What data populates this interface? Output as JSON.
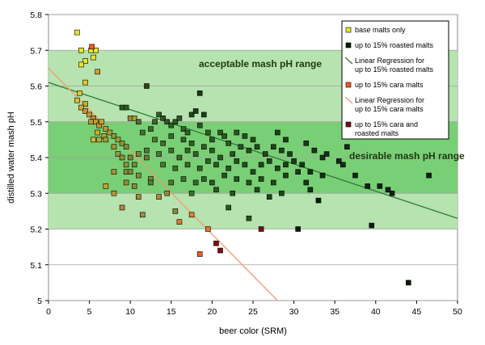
{
  "chart_data": {
    "type": "scatter",
    "title": "",
    "xlabel": "beer color (SRM)",
    "ylabel": "distilled water mash pH",
    "xlim": [
      0,
      50
    ],
    "ylim": [
      5.0,
      5.8
    ],
    "x_ticks": [
      "0",
      "5",
      "10",
      "15",
      "20",
      "25",
      "30",
      "35",
      "40",
      "45",
      "50"
    ],
    "y_ticks": [
      "5",
      "5.1",
      "5.2",
      "5.3",
      "5.4",
      "5.5",
      "5.6",
      "5.7",
      "5.8"
    ],
    "grid": "horizontal",
    "legend_position": "top-right",
    "bands": [
      {
        "label": "acceptable mash pH range",
        "ymin": 5.2,
        "ymax": 5.7,
        "color": "#b6e3b0"
      },
      {
        "label": "desirable mash pH range",
        "ymin": 5.3,
        "ymax": 5.5,
        "color": "#79cf75"
      }
    ],
    "legend": [
      {
        "label": "base malts only",
        "color": "#e6e62a",
        "kind": "marker"
      },
      {
        "label": "up to 15% roasted malts",
        "color": "#0a1a08",
        "kind": "marker"
      },
      {
        "label": "Linear Regression for up to 15% roasted malts",
        "color": "#2f7a36",
        "kind": "line"
      },
      {
        "label": "up to 15% cara malts",
        "color": "#f05a20",
        "kind": "marker"
      },
      {
        "label": "Linear Regression for up to 15% cara malts",
        "color": "#f59a6e",
        "kind": "line"
      },
      {
        "label": "up to 15% cara and roasted malts",
        "color": "#7a0f10",
        "kind": "marker"
      }
    ],
    "regression_lines": [
      {
        "name": "Linear Regression for up to 15% roasted malts",
        "color": "#2f7a36",
        "x": [
          0,
          50
        ],
        "y": [
          5.61,
          5.23
        ]
      },
      {
        "name": "Linear Regression for up to 15% cara malts",
        "color": "#f59a6e",
        "x": [
          0,
          28
        ],
        "y": [
          5.65,
          5.0
        ]
      }
    ],
    "points": [
      {
        "x": 3.5,
        "y": 5.75,
        "color": "#e6e62a"
      },
      {
        "x": 4.0,
        "y": 5.7,
        "color": "#e6e62a"
      },
      {
        "x": 5.2,
        "y": 5.7,
        "color": "#e6e62a"
      },
      {
        "x": 5.8,
        "y": 5.7,
        "color": "#e6e62a"
      },
      {
        "x": 5.5,
        "y": 5.68,
        "color": "#e6e62a"
      },
      {
        "x": 4.5,
        "y": 5.67,
        "color": "#e6e62a"
      },
      {
        "x": 4.0,
        "y": 5.66,
        "color": "#e6e62a"
      },
      {
        "x": 5.3,
        "y": 5.71,
        "color": "#f05a20"
      },
      {
        "x": 6.0,
        "y": 5.64,
        "color": "#cfa030"
      },
      {
        "x": 4.5,
        "y": 5.61,
        "color": "#e0c828"
      },
      {
        "x": 3.8,
        "y": 5.58,
        "color": "#e0c828"
      },
      {
        "x": 3.5,
        "y": 5.56,
        "color": "#d8c028"
      },
      {
        "x": 4.5,
        "y": 5.55,
        "color": "#c8b028"
      },
      {
        "x": 4.0,
        "y": 5.54,
        "color": "#d8a830"
      },
      {
        "x": 4.5,
        "y": 5.53,
        "color": "#d09030"
      },
      {
        "x": 5.0,
        "y": 5.52,
        "color": "#c89830"
      },
      {
        "x": 5.5,
        "y": 5.51,
        "color": "#d08830"
      },
      {
        "x": 5.2,
        "y": 5.5,
        "color": "#c09830"
      },
      {
        "x": 5.8,
        "y": 5.5,
        "color": "#b8a030"
      },
      {
        "x": 6.2,
        "y": 5.49,
        "color": "#d09030"
      },
      {
        "x": 6.5,
        "y": 5.5,
        "color": "#c8a030"
      },
      {
        "x": 7.0,
        "y": 5.48,
        "color": "#b0a038"
      },
      {
        "x": 7.5,
        "y": 5.47,
        "color": "#a8a038"
      },
      {
        "x": 6.0,
        "y": 5.47,
        "color": "#c8b028"
      },
      {
        "x": 6.8,
        "y": 5.46,
        "color": "#b8a830"
      },
      {
        "x": 5.5,
        "y": 5.45,
        "color": "#d0b830"
      },
      {
        "x": 6.2,
        "y": 5.45,
        "color": "#b8b030"
      },
      {
        "x": 7.0,
        "y": 5.45,
        "color": "#9aa038"
      },
      {
        "x": 8.0,
        "y": 5.46,
        "color": "#8a9838"
      },
      {
        "x": 8.5,
        "y": 5.45,
        "color": "#a0a038"
      },
      {
        "x": 9.0,
        "y": 5.44,
        "color": "#8a9838"
      },
      {
        "x": 8.0,
        "y": 5.43,
        "color": "#a09838"
      },
      {
        "x": 9.5,
        "y": 5.43,
        "color": "#7a9038"
      },
      {
        "x": 8.5,
        "y": 5.41,
        "color": "#9a9838"
      },
      {
        "x": 9.0,
        "y": 5.4,
        "color": "#8a9038"
      },
      {
        "x": 10.0,
        "y": 5.4,
        "color": "#788838"
      },
      {
        "x": 9.5,
        "y": 5.38,
        "color": "#909038"
      },
      {
        "x": 10.5,
        "y": 5.38,
        "color": "#708838"
      },
      {
        "x": 11.0,
        "y": 5.41,
        "color": "#808838"
      },
      {
        "x": 12.0,
        "y": 5.4,
        "color": "#687838"
      },
      {
        "x": 8.0,
        "y": 5.36,
        "color": "#a09838"
      },
      {
        "x": 9.5,
        "y": 5.36,
        "color": "#888838"
      },
      {
        "x": 10.0,
        "y": 5.36,
        "color": "#7a8838"
      },
      {
        "x": 11.0,
        "y": 5.35,
        "color": "#888838"
      },
      {
        "x": 12.5,
        "y": 5.34,
        "color": "#788838"
      },
      {
        "x": 7.0,
        "y": 5.32,
        "color": "#c8a030"
      },
      {
        "x": 8.0,
        "y": 5.3,
        "color": "#b09838"
      },
      {
        "x": 9.5,
        "y": 5.33,
        "color": "#a08838"
      },
      {
        "x": 10.5,
        "y": 5.32,
        "color": "#8a8838"
      },
      {
        "x": 11.0,
        "y": 5.29,
        "color": "#a08838"
      },
      {
        "x": 13.5,
        "y": 5.29,
        "color": "#b08838"
      },
      {
        "x": 14.5,
        "y": 5.3,
        "color": "#988838"
      },
      {
        "x": 9.0,
        "y": 5.26,
        "color": "#b08838"
      },
      {
        "x": 11.5,
        "y": 5.24,
        "color": "#a88838"
      },
      {
        "x": 15.5,
        "y": 5.25,
        "color": "#888838"
      },
      {
        "x": 16.0,
        "y": 5.22,
        "color": "#e07830"
      },
      {
        "x": 17.5,
        "y": 5.24,
        "color": "#e08030"
      },
      {
        "x": 19.5,
        "y": 5.2,
        "color": "#e07830"
      },
      {
        "x": 18.5,
        "y": 5.13,
        "color": "#f05a20"
      },
      {
        "x": 20.5,
        "y": 5.16,
        "color": "#7a0f10"
      },
      {
        "x": 21.0,
        "y": 5.14,
        "color": "#7a0f10"
      },
      {
        "x": 26.0,
        "y": 5.2,
        "color": "#7a0f10"
      },
      {
        "x": 9.0,
        "y": 5.54,
        "color": "#2a5a18"
      },
      {
        "x": 9.5,
        "y": 5.54,
        "color": "#2a5a18"
      },
      {
        "x": 10.0,
        "y": 5.51,
        "color": "#a08838"
      },
      {
        "x": 10.5,
        "y": 5.51,
        "color": "#a0a030"
      },
      {
        "x": 12.0,
        "y": 5.6,
        "color": "#3a4010"
      },
      {
        "x": 18.5,
        "y": 5.58,
        "color": "#183a10"
      },
      {
        "x": 11.0,
        "y": 5.5,
        "color": "#507030"
      },
      {
        "x": 11.5,
        "y": 5.47,
        "color": "#4a7030"
      },
      {
        "x": 12.5,
        "y": 5.48,
        "color": "#3e6a28"
      },
      {
        "x": 13.0,
        "y": 5.5,
        "color": "#386a28"
      },
      {
        "x": 13.5,
        "y": 5.52,
        "color": "#306028"
      },
      {
        "x": 14.0,
        "y": 5.51,
        "color": "#2a5820"
      },
      {
        "x": 14.5,
        "y": 5.5,
        "color": "#2a5820"
      },
      {
        "x": 15.0,
        "y": 5.49,
        "color": "#2e6020"
      },
      {
        "x": 15.5,
        "y": 5.5,
        "color": "#2a5a20"
      },
      {
        "x": 16.0,
        "y": 5.51,
        "color": "#2a5a20"
      },
      {
        "x": 16.5,
        "y": 5.48,
        "color": "#306020"
      },
      {
        "x": 17.0,
        "y": 5.47,
        "color": "#306020"
      },
      {
        "x": 17.5,
        "y": 5.52,
        "color": "#1e4818"
      },
      {
        "x": 18.0,
        "y": 5.53,
        "color": "#1a4018"
      },
      {
        "x": 18.5,
        "y": 5.49,
        "color": "#2a5820"
      },
      {
        "x": 19.0,
        "y": 5.52,
        "color": "#1a4018"
      },
      {
        "x": 13.0,
        "y": 5.45,
        "color": "#4a7a30"
      },
      {
        "x": 14.0,
        "y": 5.44,
        "color": "#3e7028"
      },
      {
        "x": 15.0,
        "y": 5.46,
        "color": "#3a6a28"
      },
      {
        "x": 16.5,
        "y": 5.45,
        "color": "#306428"
      },
      {
        "x": 17.5,
        "y": 5.44,
        "color": "#2e6020"
      },
      {
        "x": 19.5,
        "y": 5.47,
        "color": "#306020"
      },
      {
        "x": 20.0,
        "y": 5.45,
        "color": "#2a5a20"
      },
      {
        "x": 21.0,
        "y": 5.47,
        "color": "#2a5820"
      },
      {
        "x": 21.5,
        "y": 5.46,
        "color": "#285820"
      },
      {
        "x": 22.0,
        "y": 5.44,
        "color": "#2a5a20"
      },
      {
        "x": 23.0,
        "y": 5.47,
        "color": "#2a5820"
      },
      {
        "x": 24.0,
        "y": 5.46,
        "color": "#265020"
      },
      {
        "x": 25.0,
        "y": 5.45,
        "color": "#225018"
      },
      {
        "x": 12.0,
        "y": 5.42,
        "color": "#507a30"
      },
      {
        "x": 13.5,
        "y": 5.41,
        "color": "#4a7830"
      },
      {
        "x": 15.0,
        "y": 5.42,
        "color": "#3e7028"
      },
      {
        "x": 16.0,
        "y": 5.4,
        "color": "#386a28"
      },
      {
        "x": 17.0,
        "y": 5.42,
        "color": "#346828"
      },
      {
        "x": 18.0,
        "y": 5.41,
        "color": "#306220"
      },
      {
        "x": 19.0,
        "y": 5.43,
        "color": "#2e6020"
      },
      {
        "x": 20.0,
        "y": 5.42,
        "color": "#2a5a20"
      },
      {
        "x": 21.0,
        "y": 5.4,
        "color": "#2a5820"
      },
      {
        "x": 22.5,
        "y": 5.41,
        "color": "#265420"
      },
      {
        "x": 23.5,
        "y": 5.43,
        "color": "#265420"
      },
      {
        "x": 24.5,
        "y": 5.42,
        "color": "#225018"
      },
      {
        "x": 25.5,
        "y": 5.43,
        "color": "#204c18"
      },
      {
        "x": 26.5,
        "y": 5.41,
        "color": "#1e4818"
      },
      {
        "x": 27.5,
        "y": 5.43,
        "color": "#1c4618"
      },
      {
        "x": 28.5,
        "y": 5.42,
        "color": "#1a4418"
      },
      {
        "x": 29.5,
        "y": 5.41,
        "color": "#184018"
      },
      {
        "x": 14.0,
        "y": 5.38,
        "color": "#4a7830"
      },
      {
        "x": 15.5,
        "y": 5.37,
        "color": "#3e7028"
      },
      {
        "x": 17.0,
        "y": 5.38,
        "color": "#386a28"
      },
      {
        "x": 18.5,
        "y": 5.37,
        "color": "#306220"
      },
      {
        "x": 19.5,
        "y": 5.39,
        "color": "#2e6020"
      },
      {
        "x": 20.5,
        "y": 5.38,
        "color": "#2a5820"
      },
      {
        "x": 22.0,
        "y": 5.37,
        "color": "#265420"
      },
      {
        "x": 23.0,
        "y": 5.39,
        "color": "#245220"
      },
      {
        "x": 24.0,
        "y": 5.38,
        "color": "#225018"
      },
      {
        "x": 25.0,
        "y": 5.36,
        "color": "#204c18"
      },
      {
        "x": 26.0,
        "y": 5.38,
        "color": "#1e4818"
      },
      {
        "x": 27.0,
        "y": 5.39,
        "color": "#1c4618"
      },
      {
        "x": 28.0,
        "y": 5.37,
        "color": "#1a4418"
      },
      {
        "x": 29.0,
        "y": 5.38,
        "color": "#184018"
      },
      {
        "x": 30.0,
        "y": 5.39,
        "color": "#163c18"
      },
      {
        "x": 31.0,
        "y": 5.38,
        "color": "#143818"
      },
      {
        "x": 12.5,
        "y": 5.33,
        "color": "#587a30"
      },
      {
        "x": 15.0,
        "y": 5.33,
        "color": "#4a7830"
      },
      {
        "x": 16.5,
        "y": 5.34,
        "color": "#3e7028"
      },
      {
        "x": 18.0,
        "y": 5.33,
        "color": "#386a28"
      },
      {
        "x": 19.0,
        "y": 5.34,
        "color": "#306220"
      },
      {
        "x": 20.0,
        "y": 5.33,
        "color": "#2a5820"
      },
      {
        "x": 21.5,
        "y": 5.35,
        "color": "#265420"
      },
      {
        "x": 23.0,
        "y": 5.34,
        "color": "#245220"
      },
      {
        "x": 24.5,
        "y": 5.33,
        "color": "#225018"
      },
      {
        "x": 26.0,
        "y": 5.34,
        "color": "#204c18"
      },
      {
        "x": 27.5,
        "y": 5.33,
        "color": "#1e4818"
      },
      {
        "x": 29.0,
        "y": 5.35,
        "color": "#1a4418"
      },
      {
        "x": 17.5,
        "y": 5.3,
        "color": "#3e7028"
      },
      {
        "x": 20.5,
        "y": 5.31,
        "color": "#2a5820"
      },
      {
        "x": 22.5,
        "y": 5.3,
        "color": "#265420"
      },
      {
        "x": 25.5,
        "y": 5.31,
        "color": "#204c18"
      },
      {
        "x": 27.0,
        "y": 5.29,
        "color": "#1c4618"
      },
      {
        "x": 28.5,
        "y": 5.3,
        "color": "#1a4418"
      },
      {
        "x": 22.0,
        "y": 5.26,
        "color": "#2a5820"
      },
      {
        "x": 24.5,
        "y": 5.23,
        "color": "#225018"
      },
      {
        "x": 28.0,
        "y": 5.47,
        "color": "#1a4418"
      },
      {
        "x": 29.0,
        "y": 5.45,
        "color": "#184018"
      },
      {
        "x": 31.5,
        "y": 5.44,
        "color": "#163c18"
      },
      {
        "x": 32.5,
        "y": 5.42,
        "color": "#143818"
      },
      {
        "x": 33.5,
        "y": 5.4,
        "color": "#123418"
      },
      {
        "x": 34.0,
        "y": 5.41,
        "color": "#103018"
      },
      {
        "x": 30.5,
        "y": 5.36,
        "color": "#163c18"
      },
      {
        "x": 31.5,
        "y": 5.33,
        "color": "#143818"
      },
      {
        "x": 32.0,
        "y": 5.36,
        "color": "#123418"
      },
      {
        "x": 33.5,
        "y": 5.35,
        "color": "#103018"
      },
      {
        "x": 35.5,
        "y": 5.39,
        "color": "#0e2c18"
      },
      {
        "x": 36.0,
        "y": 5.38,
        "color": "#0e2c18"
      },
      {
        "x": 36.5,
        "y": 5.43,
        "color": "#0e2c18"
      },
      {
        "x": 37.5,
        "y": 5.35,
        "color": "#0c2818"
      },
      {
        "x": 39.0,
        "y": 5.32,
        "color": "#0c2818"
      },
      {
        "x": 40.5,
        "y": 5.32,
        "color": "#0a2418"
      },
      {
        "x": 41.5,
        "y": 5.31,
        "color": "#0a2418"
      },
      {
        "x": 42.0,
        "y": 5.3,
        "color": "#0a2418"
      },
      {
        "x": 46.5,
        "y": 5.35,
        "color": "#0a2418"
      },
      {
        "x": 32.0,
        "y": 5.31,
        "color": "#123418"
      },
      {
        "x": 33.0,
        "y": 5.28,
        "color": "#0a1a08"
      },
      {
        "x": 30.5,
        "y": 5.2,
        "color": "#0a1a08"
      },
      {
        "x": 39.5,
        "y": 5.21,
        "color": "#0a1a08"
      },
      {
        "x": 44.0,
        "y": 5.05,
        "color": "#0a1a08"
      }
    ]
  }
}
